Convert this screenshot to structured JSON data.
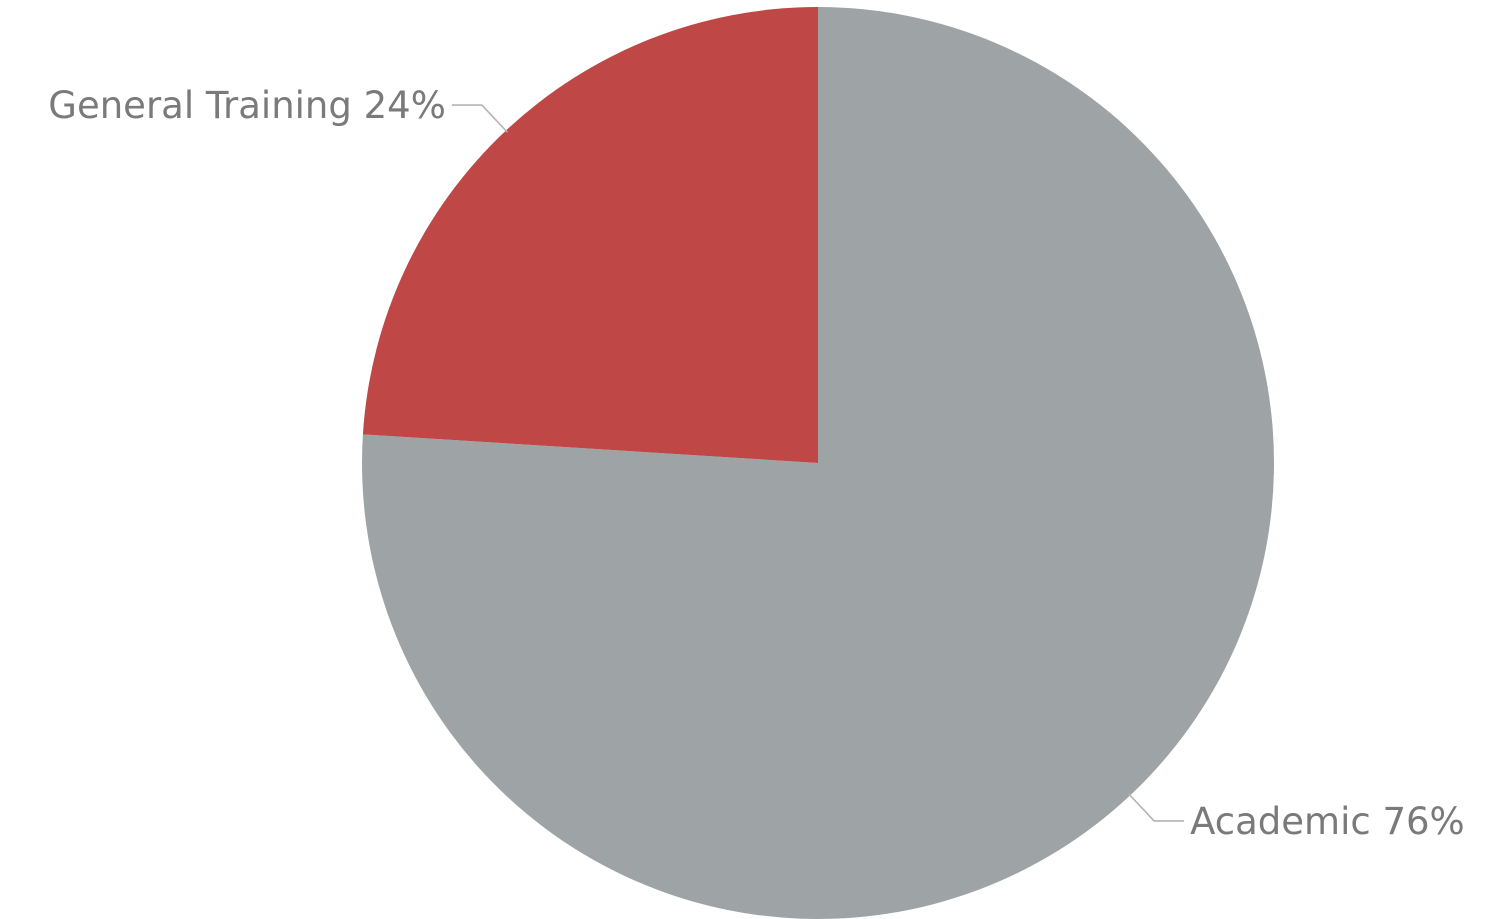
{
  "chart_data": {
    "type": "pie",
    "categories": [
      "Academic",
      "General Training"
    ],
    "values": [
      76,
      24
    ],
    "labels": [
      "Academic 76%",
      "General Training 24%"
    ],
    "colors": [
      "#9ea4a6",
      "#bf4846"
    ],
    "start": "12 o'clock",
    "direction": "clockwise",
    "legend": "none"
  }
}
